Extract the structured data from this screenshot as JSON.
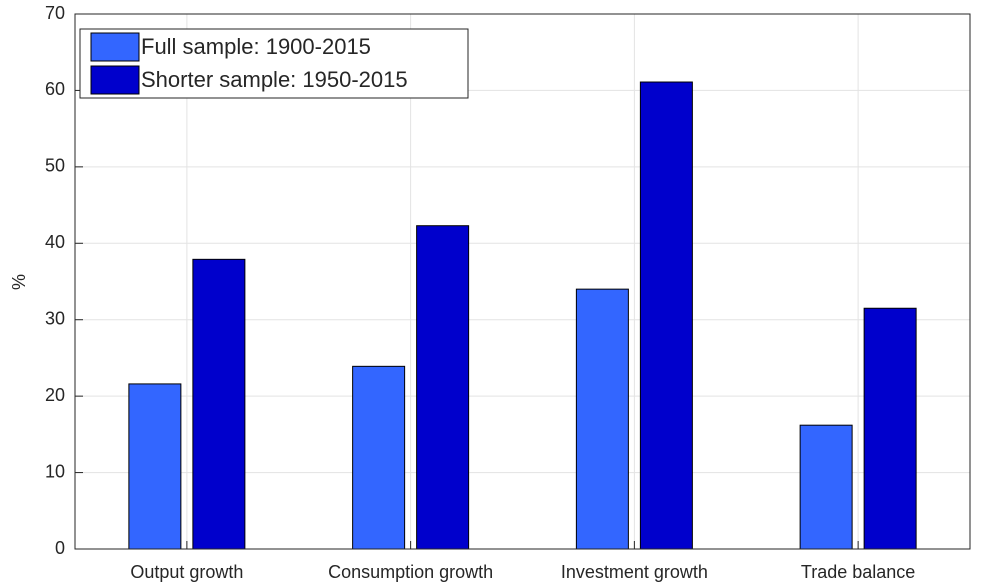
{
  "chart_data": {
    "type": "bar",
    "y_label": "%",
    "categories": [
      "Output growth",
      "Consumption growth",
      "Investment growth",
      "Trade balance"
    ],
    "series": [
      {
        "name": "Full sample: 1900-2015",
        "color": "#3366ff",
        "values": [
          21.6,
          23.9,
          34.0,
          16.2
        ]
      },
      {
        "name": "Shorter sample: 1950-2015",
        "color": "#0000cc",
        "values": [
          37.9,
          42.3,
          61.1,
          31.5
        ]
      }
    ],
    "ylim": [
      0,
      70
    ],
    "yticks": [
      0,
      10,
      20,
      30,
      40,
      50,
      60,
      70
    ],
    "grid": true,
    "legend": "top-left"
  }
}
